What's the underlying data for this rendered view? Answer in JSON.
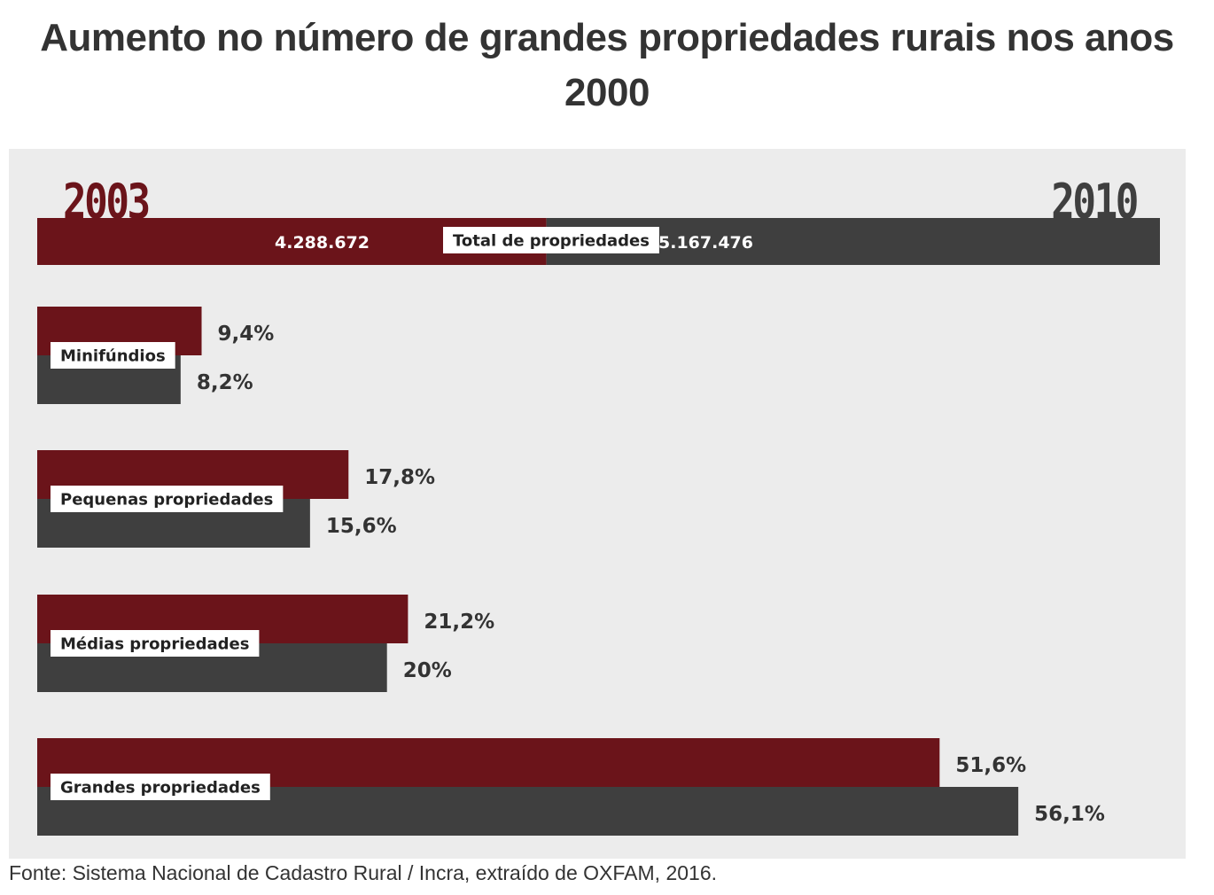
{
  "title": "Aumento no número de grandes propriedades rurais nos anos 2000",
  "source": "Fonte: Sistema Nacional de Cadastro Rural / Incra, extraído de OXFAM, 2016.",
  "colors": {
    "year_2003": "#6b141a",
    "year_2010": "#3f3f3f",
    "panel_background": "#ececec",
    "label_box": "#ffffff"
  },
  "chart_data": [
    {
      "type": "bar",
      "orientation": "horizontal-stacked",
      "series_labels": [
        "2003",
        "2010"
      ],
      "total_label": "Total de propriedades",
      "values": [
        4288672,
        5167476
      ],
      "value_labels": [
        "4.288.672",
        "5.167.476"
      ]
    },
    {
      "type": "bar",
      "orientation": "horizontal",
      "categories": [
        "Minifúndios",
        "Pequenas propriedades",
        "Médias propriedades",
        "Grandes propriedades"
      ],
      "series": [
        {
          "name": "2003",
          "values": [
            9.4,
            17.8,
            21.2,
            51.6
          ],
          "value_labels": [
            "9,4%",
            "17,8%",
            "21,2%",
            "51,6%"
          ]
        },
        {
          "name": "2010",
          "values": [
            8.2,
            15.6,
            20,
            56.1
          ],
          "value_labels": [
            "8,2%",
            "15,6%",
            "20%",
            "56,1%"
          ]
        }
      ],
      "xlim": [
        0,
        64.2
      ]
    }
  ]
}
